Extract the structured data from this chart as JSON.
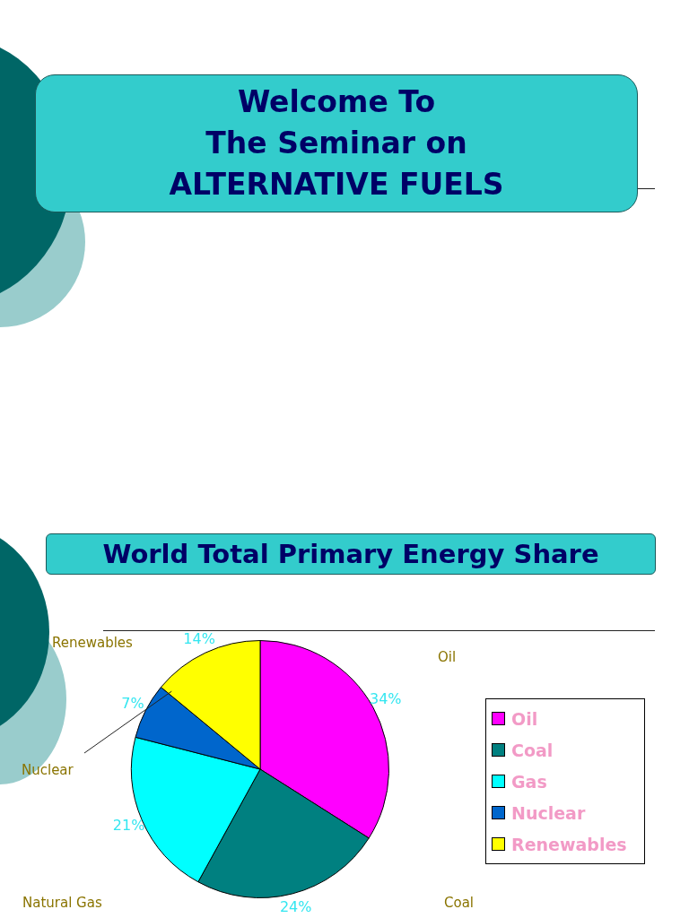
{
  "chart_data": {
    "type": "pie",
    "title": "World Total Primary Energy Share",
    "categories": [
      "Oil",
      "Coal",
      "Gas",
      "Nuclear",
      "Renewables"
    ],
    "values": [
      34,
      24,
      21,
      7,
      14
    ],
    "colors": [
      "#ff00ff",
      "#008080",
      "#00ffff",
      "#0066cc",
      "#ffff00"
    ],
    "value_labels": [
      "34%",
      "24%",
      "21%",
      "7%",
      "14%"
    ],
    "legend": "right",
    "annotations": [
      "Welcome To\nThe Seminar on\nALTERNATIVE FUELS",
      "Renewables",
      "Oil",
      "Nuclear",
      "Natural Gas",
      "Coal"
    ]
  }
}
